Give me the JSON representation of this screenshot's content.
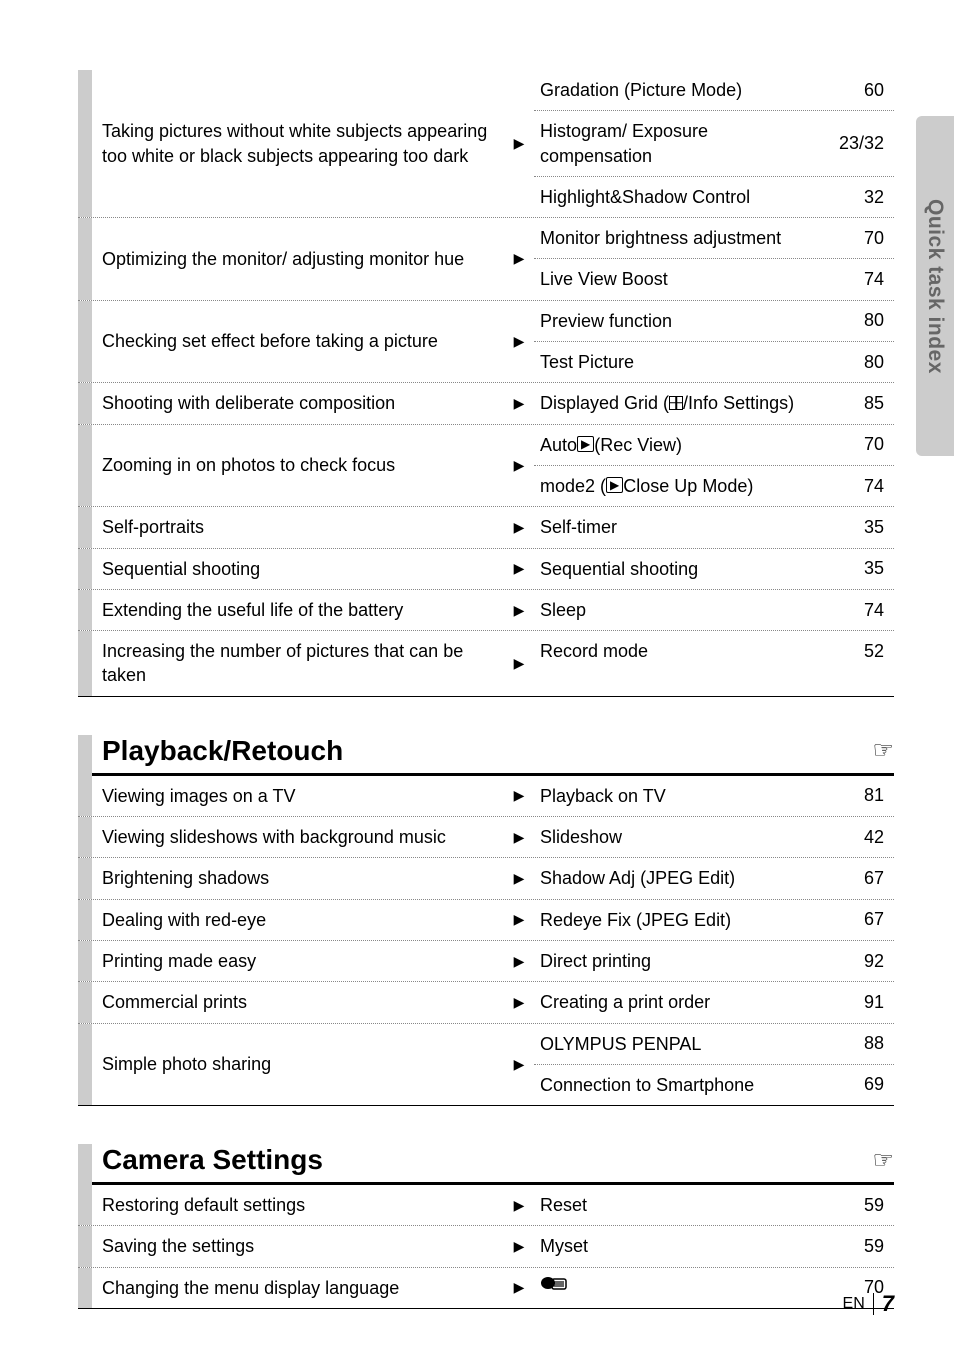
{
  "side_tab": "Quick task index",
  "footer": {
    "lang": "EN",
    "page": "7"
  },
  "sections": [
    {
      "rows": [
        {
          "left": "Taking pictures without white subjects appearing too white or black subjects appearing too dark",
          "subs": [
            {
              "label": "Gradation (Picture Mode)",
              "page": "60"
            },
            {
              "label": "Histogram/\nExposure compensation",
              "page": "23/32"
            },
            {
              "label": "Highlight&Shadow Control",
              "page": "32"
            }
          ]
        },
        {
          "left": "Optimizing the monitor/\nadjusting monitor hue",
          "subs": [
            {
              "label": "Monitor brightness adjustment",
              "page": "70"
            },
            {
              "label": "Live View Boost",
              "page": "74"
            }
          ]
        },
        {
          "left": "Checking set effect before taking a picture",
          "subs": [
            {
              "label": "Preview function",
              "page": "80"
            },
            {
              "label": "Test Picture",
              "page": "80"
            }
          ]
        },
        {
          "left": "Shooting with deliberate composition",
          "subs": [
            {
              "label_html": "Displayed Grid (<span class='grid-icon'></span>/Info Settings)",
              "page": "85"
            }
          ]
        },
        {
          "left": "Zooming in on photos to check focus",
          "subs": [
            {
              "label_html": "Auto<span class='inline-icon'>▶</span> (Rec View)",
              "page": "70"
            },
            {
              "label_html": "mode2 (<span class='inline-icon'>▶</span> Close Up Mode)",
              "page": "74"
            }
          ]
        },
        {
          "left": "Self-portraits",
          "subs": [
            {
              "label": "Self-timer",
              "page": "35"
            }
          ]
        },
        {
          "left": "Sequential shooting",
          "subs": [
            {
              "label": "Sequential shooting",
              "page": "35"
            }
          ]
        },
        {
          "left": "Extending the useful life of the battery",
          "subs": [
            {
              "label": "Sleep",
              "page": "74"
            }
          ]
        },
        {
          "left": "Increasing the number of pictures that can be taken",
          "subs": [
            {
              "label": "Record mode",
              "page": "52"
            }
          ]
        }
      ]
    },
    {
      "title": "Playback/Retouch",
      "rows": [
        {
          "left": "Viewing images on a TV",
          "subs": [
            {
              "label": "Playback on TV",
              "page": "81"
            }
          ]
        },
        {
          "left": "Viewing slideshows with background music",
          "subs": [
            {
              "label": "Slideshow",
              "page": "42"
            }
          ]
        },
        {
          "left": "Brightening shadows",
          "subs": [
            {
              "label": "Shadow Adj (JPEG Edit)",
              "page": "67"
            }
          ]
        },
        {
          "left": "Dealing with red-eye",
          "subs": [
            {
              "label": "Redeye Fix (JPEG Edit)",
              "page": "67"
            }
          ]
        },
        {
          "left": "Printing made easy",
          "subs": [
            {
              "label": "Direct printing",
              "page": "92"
            }
          ]
        },
        {
          "left": "Commercial prints",
          "subs": [
            {
              "label": "Creating a print order",
              "page": "91"
            }
          ]
        },
        {
          "left": "Simple photo sharing",
          "subs": [
            {
              "label": "OLYMPUS PENPAL",
              "page": "88"
            },
            {
              "label": "Connection to Smartphone",
              "page": "69"
            }
          ]
        }
      ]
    },
    {
      "title": "Camera Settings",
      "rows": [
        {
          "left": "Restoring default settings",
          "subs": [
            {
              "label": "Reset",
              "page": "59"
            }
          ]
        },
        {
          "left": "Saving the settings",
          "subs": [
            {
              "label": "Myset",
              "page": "59"
            }
          ]
        },
        {
          "left": "Changing the menu display language",
          "subs": [
            {
              "label_html": "<span class='bubble-icon'><svg width='28' height='18' viewBox='0 0 28 18'><ellipse cx='8' cy='8' rx='7' ry='6' fill='#000'/><rect x='12' y='4' width='14' height='10' rx='2' fill='none' stroke='#000' stroke-width='1.5'/><line x1='14' y1='7' x2='24' y2='7' stroke='#000' stroke-width='1.2'/><line x1='14' y1='9' x2='24' y2='9' stroke='#000' stroke-width='1.2'/><line x1='14' y1='11' x2='24' y2='11' stroke='#000' stroke-width='1.2'/></svg></span>",
              "page": "70"
            }
          ]
        }
      ]
    }
  ]
}
